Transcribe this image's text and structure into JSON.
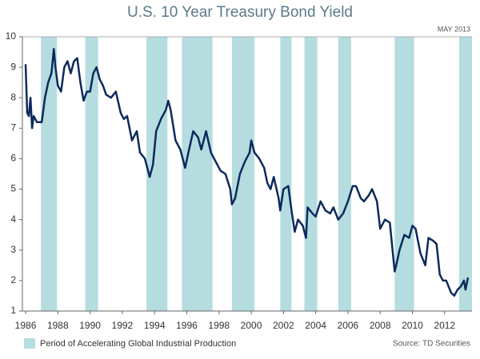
{
  "chart_data": {
    "type": "line",
    "title": "U.S. 10 Year Treasury Bond Yield",
    "note": "MAY 2013",
    "source": "Source: TD Securities",
    "x": [
      1986.0,
      1986.1,
      1986.2,
      1986.3,
      1986.4,
      1986.5,
      1986.7,
      1987.0,
      1987.2,
      1987.4,
      1987.6,
      1987.75,
      1987.85,
      1988.0,
      1988.2,
      1988.4,
      1988.6,
      1988.8,
      1989.0,
      1989.2,
      1989.4,
      1989.6,
      1989.8,
      1990.0,
      1990.2,
      1990.4,
      1990.6,
      1990.8,
      1991.0,
      1991.3,
      1991.6,
      1991.9,
      1992.1,
      1992.3,
      1992.6,
      1992.9,
      1993.1,
      1993.4,
      1993.7,
      1993.9,
      1994.1,
      1994.4,
      1994.7,
      1994.85,
      1995.0,
      1995.3,
      1995.6,
      1995.9,
      1996.1,
      1996.4,
      1996.7,
      1996.9,
      1997.2,
      1997.5,
      1997.8,
      1998.1,
      1998.4,
      1998.7,
      1998.8,
      1999.0,
      1999.3,
      1999.6,
      1999.9,
      2000.0,
      2000.2,
      2000.5,
      2000.8,
      2001.0,
      2001.2,
      2001.4,
      2001.7,
      2001.8,
      2002.0,
      2002.3,
      2002.5,
      2002.7,
      2002.9,
      2003.2,
      2003.4,
      2003.5,
      2003.8,
      2004.0,
      2004.3,
      2004.6,
      2004.9,
      2005.1,
      2005.4,
      2005.7,
      2006.0,
      2006.3,
      2006.5,
      2006.8,
      2007.0,
      2007.3,
      2007.5,
      2007.8,
      2008.0,
      2008.3,
      2008.6,
      2008.9,
      2009.0,
      2009.2,
      2009.5,
      2009.8,
      2010.0,
      2010.2,
      2010.5,
      2010.8,
      2011.0,
      2011.3,
      2011.5,
      2011.7,
      2011.9,
      2012.1,
      2012.4,
      2012.6,
      2012.8,
      2013.0,
      2013.2,
      2013.3,
      2013.45
    ],
    "series": [
      {
        "color": "#0d2a5c",
        "values": [
          9.1,
          7.5,
          7.4,
          8.0,
          7.0,
          7.4,
          7.2,
          7.2,
          8.0,
          8.5,
          8.8,
          9.6,
          9.0,
          8.4,
          8.2,
          9.0,
          9.2,
          8.8,
          9.2,
          9.3,
          8.5,
          7.9,
          8.2,
          8.2,
          8.8,
          9.0,
          8.6,
          8.4,
          8.1,
          8.0,
          8.2,
          7.5,
          7.3,
          7.4,
          6.6,
          6.9,
          6.2,
          6.0,
          5.4,
          5.8,
          6.9,
          7.3,
          7.6,
          7.9,
          7.6,
          6.6,
          6.3,
          5.7,
          6.2,
          6.9,
          6.7,
          6.3,
          6.9,
          6.2,
          5.9,
          5.6,
          5.5,
          5.0,
          4.5,
          4.7,
          5.5,
          5.9,
          6.2,
          6.6,
          6.2,
          6.0,
          5.7,
          5.2,
          5.0,
          5.4,
          4.7,
          4.3,
          5.0,
          5.1,
          4.3,
          3.6,
          4.0,
          3.8,
          3.4,
          4.4,
          4.2,
          4.1,
          4.6,
          4.3,
          4.2,
          4.4,
          4.0,
          4.2,
          4.6,
          5.1,
          5.1,
          4.7,
          4.6,
          4.8,
          5.0,
          4.6,
          3.7,
          4.0,
          3.9,
          2.3,
          2.5,
          3.0,
          3.5,
          3.4,
          3.8,
          3.7,
          2.9,
          2.5,
          3.4,
          3.3,
          3.2,
          2.2,
          2.0,
          2.0,
          1.6,
          1.5,
          1.7,
          1.8,
          2.0,
          1.7,
          2.1
        ]
      }
    ],
    "shaded_periods": {
      "name": "Period of Accelerating Global Industrial Production",
      "color": "#b5dde0",
      "ranges": [
        [
          1986.95,
          1987.95
        ],
        [
          1989.7,
          1990.5
        ],
        [
          1993.5,
          1994.8
        ],
        [
          1995.7,
          1997.6
        ],
        [
          1998.8,
          2000.2
        ],
        [
          2001.8,
          2002.5
        ],
        [
          2003.3,
          2004.1
        ],
        [
          2005.4,
          2006.2
        ],
        [
          2008.9,
          2010.1
        ],
        [
          2012.9,
          2013.7
        ]
      ]
    },
    "xlim": [
      1985.8,
      2013.7
    ],
    "ylim": [
      1,
      10
    ],
    "xticks": [
      1986,
      1988,
      1990,
      1992,
      1994,
      1996,
      1998,
      2000,
      2002,
      2004,
      2006,
      2008,
      2010,
      2012
    ],
    "yticks": [
      1,
      2,
      3,
      4,
      5,
      6,
      7,
      8,
      9,
      10
    ]
  }
}
